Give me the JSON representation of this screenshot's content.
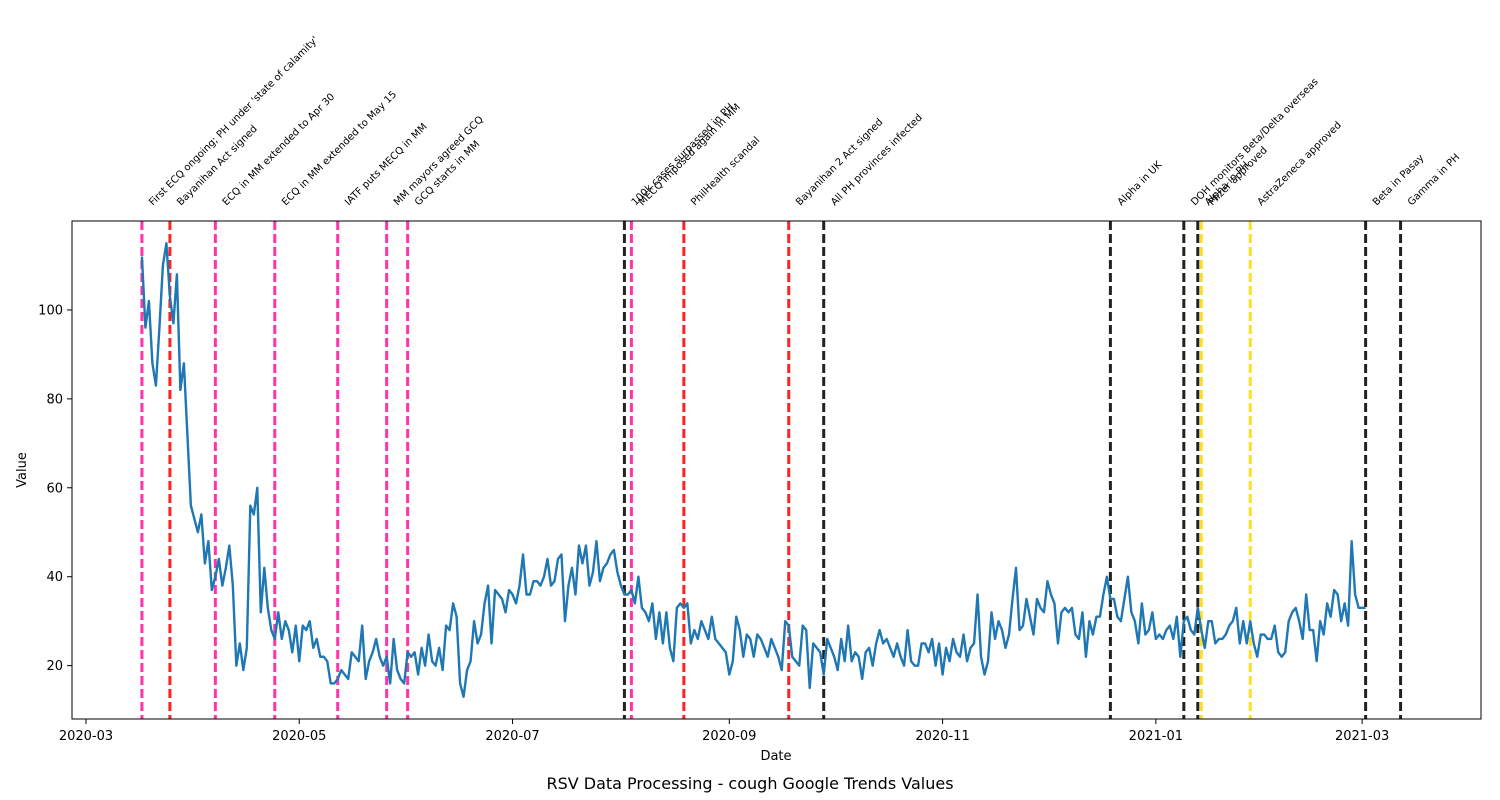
{
  "chart_data": {
    "type": "line",
    "title": "RSV Data Processing - cough Google Trends Values",
    "xlabel": "Date",
    "ylabel": "Value",
    "xlim": [
      "2020-02-26",
      "2021-04-04"
    ],
    "ylim": [
      8,
      120
    ],
    "grid": false,
    "x_ticks": [
      "2020-03-01",
      "2020-05-01",
      "2020-07-01",
      "2020-09-01",
      "2020-11-01",
      "2021-01-01",
      "2021-03-01"
    ],
    "x_tick_labels": [
      "2020-03",
      "2020-05",
      "2020-07",
      "2020-09",
      "2020-11",
      "2021-01",
      "2021-03"
    ],
    "y_ticks": [
      20,
      40,
      60,
      80,
      100
    ],
    "y_tick_labels": [
      "20",
      "40",
      "60",
      "80",
      "100"
    ],
    "series": [
      {
        "color": "#1f77b4",
        "start_date": "2020-03-17",
        "values": [
          112,
          96,
          102,
          88,
          83,
          96,
          110,
          115,
          103,
          97,
          108,
          82,
          88,
          72,
          56,
          53,
          50,
          54,
          43,
          48,
          37,
          40,
          44,
          38,
          42,
          47,
          38,
          20,
          25,
          19,
          24,
          56,
          54,
          60,
          32,
          42,
          33,
          28,
          26,
          32,
          26,
          30,
          28,
          23,
          29,
          21,
          29,
          28,
          30,
          24,
          26,
          22,
          22,
          21,
          16,
          16,
          17,
          19,
          18,
          17,
          23,
          22,
          21,
          29,
          17,
          21,
          23,
          26,
          22,
          20,
          22,
          16,
          26,
          19,
          17,
          16,
          23,
          22,
          23,
          18,
          24,
          20,
          27,
          21,
          20,
          24,
          19,
          29,
          28,
          34,
          31,
          16,
          13,
          19,
          21,
          30,
          25,
          27,
          34,
          38,
          25,
          37,
          36,
          35,
          32,
          37,
          36,
          34,
          38,
          45,
          36,
          36,
          39,
          39,
          38,
          40,
          44,
          38,
          39,
          44,
          45,
          30,
          38,
          42,
          36,
          47,
          43,
          47,
          38,
          41,
          48,
          39,
          42,
          43,
          45,
          46,
          41,
          38,
          36,
          36,
          37,
          34,
          40,
          33,
          32,
          30,
          34,
          26,
          32,
          25,
          32,
          24,
          21,
          33,
          34,
          33,
          34,
          25,
          28,
          26,
          30,
          28,
          26,
          31,
          26,
          25,
          24,
          23,
          18,
          21,
          31,
          28,
          22,
          27,
          26,
          22,
          27,
          26,
          24,
          22,
          26,
          24,
          22,
          19,
          30,
          29,
          22,
          21,
          20,
          29,
          28,
          15,
          25,
          24,
          23,
          18,
          26,
          24,
          22,
          19,
          26,
          21,
          29,
          21,
          23,
          22,
          17,
          23,
          24,
          20,
          25,
          28,
          25,
          26,
          24,
          22,
          25,
          22,
          20,
          28,
          21,
          20,
          20,
          25,
          25,
          23,
          26,
          20,
          25,
          18,
          24,
          21,
          26,
          23,
          22,
          27,
          21,
          24,
          25,
          36,
          22,
          18,
          21,
          32,
          26,
          30,
          28,
          24,
          27,
          35,
          42,
          28,
          29,
          35,
          31,
          27,
          35,
          33,
          32,
          39,
          36,
          34,
          25,
          32,
          33,
          32,
          33,
          27,
          26,
          32,
          22,
          30,
          27,
          31,
          31,
          36,
          40,
          35,
          35,
          31,
          30,
          35,
          40,
          32,
          30,
          25,
          34,
          27,
          28,
          32,
          26,
          27,
          26,
          28,
          29,
          26,
          31,
          22,
          30,
          31,
          28,
          27,
          33,
          28,
          24,
          30,
          30,
          25,
          26,
          26,
          27,
          29,
          30,
          33,
          25,
          30,
          25,
          30,
          25,
          22,
          27,
          27,
          26,
          26,
          29,
          23,
          22,
          23,
          30,
          32,
          33,
          30,
          26,
          36,
          28,
          28,
          21,
          30,
          27,
          34,
          31,
          37,
          36,
          30,
          34,
          29,
          48,
          36,
          33,
          33,
          33
        ]
      }
    ],
    "events": [
      {
        "date": "2020-03-17",
        "color": "#ff33aa",
        "label": "First ECQ ongoing; PH under 'state of calamity'"
      },
      {
        "date": "2020-03-25",
        "color": "#ff2222",
        "label": "Bayanihan Act signed"
      },
      {
        "date": "2020-04-07",
        "color": "#ff33aa",
        "label": "ECQ in MM extended to Apr 30"
      },
      {
        "date": "2020-04-24",
        "color": "#ff33aa",
        "label": "ECQ in MM extended to May 15"
      },
      {
        "date": "2020-05-12",
        "color": "#ff33aa",
        "label": "IATF puts MECQ in MM"
      },
      {
        "date": "2020-05-26",
        "color": "#ff33aa",
        "label": "MM mayors agreed GCQ"
      },
      {
        "date": "2020-06-01",
        "color": "#ff33aa",
        "label": "GCQ starts in MM"
      },
      {
        "date": "2020-08-02",
        "color": "#222222",
        "label": "100k cases surpassed in PH"
      },
      {
        "date": "2020-08-04",
        "color": "#ff33aa",
        "label": "MECQ imposed again in MM"
      },
      {
        "date": "2020-08-19",
        "color": "#ff2222",
        "label": "PhilHealth scandal"
      },
      {
        "date": "2020-09-18",
        "color": "#ff2222",
        "label": "Bayanihan 2 Act signed"
      },
      {
        "date": "2020-09-28",
        "color": "#222222",
        "label": "All PH provinces infected"
      },
      {
        "date": "2020-12-19",
        "color": "#222222",
        "label": "Alpha in UK"
      },
      {
        "date": "2021-01-09",
        "color": "#222222",
        "label": "DOH monitors Beta/Delta overseas"
      },
      {
        "date": "2021-01-13",
        "color": "#222222",
        "label": "Alpha in PH"
      },
      {
        "date": "2021-01-14",
        "color": "#ffdd22",
        "label": "Pfizer approved"
      },
      {
        "date": "2021-01-28",
        "color": "#ffdd22",
        "label": "AstraZeneca approved"
      },
      {
        "date": "2021-03-02",
        "color": "#222222",
        "label": "Beta in Pasay"
      },
      {
        "date": "2021-03-12",
        "color": "#222222",
        "label": "Gamma in PH"
      }
    ]
  }
}
